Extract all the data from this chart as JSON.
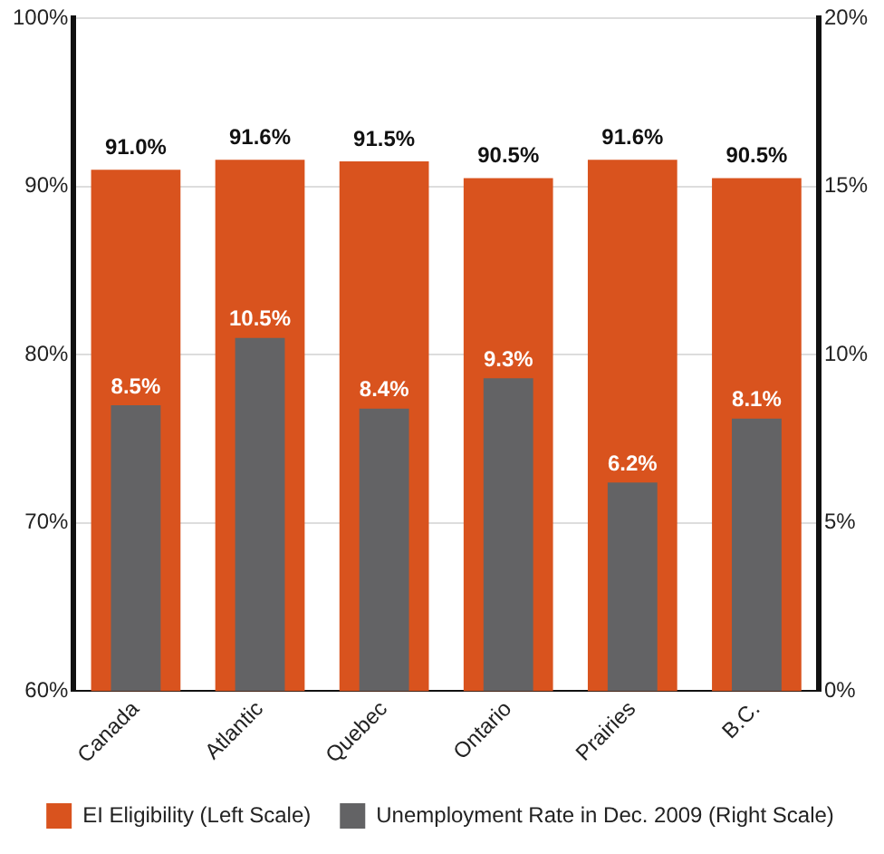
{
  "chart_data": {
    "type": "bar",
    "categories": [
      "Canada",
      "Atlantic",
      "Quebec",
      "Ontario",
      "Prairies",
      "B.C."
    ],
    "series": [
      {
        "name": "EI Eligibility (Left Scale)",
        "color": "#d9531e",
        "values": [
          91.0,
          91.6,
          91.5,
          90.5,
          91.6,
          90.5
        ],
        "value_labels": [
          "91.0%",
          "91.6%",
          "91.5%",
          "90.5%",
          "91.6%",
          "90.5%"
        ]
      },
      {
        "name": "Unemployment Rate in Dec. 2009 (Right Scale)",
        "color": "#636365",
        "axis": "y2",
        "values": [
          8.5,
          10.5,
          8.4,
          9.3,
          6.2,
          8.1
        ],
        "value_labels": [
          "8.5%",
          "10.5%",
          "8.4%",
          "9.3%",
          "6.2%",
          "8.1%"
        ]
      }
    ],
    "ylim": [
      60,
      100
    ],
    "yticks": [
      {
        "value": 60,
        "label": "60%"
      },
      {
        "value": 70,
        "label": "70%"
      },
      {
        "value": 80,
        "label": "80%"
      },
      {
        "value": 90,
        "label": "90%"
      },
      {
        "value": 100,
        "label": "100%"
      }
    ],
    "y2lim": [
      0,
      20
    ],
    "y2ticks": [
      {
        "value": 0,
        "label": "0%"
      },
      {
        "value": 5,
        "label": "5%"
      },
      {
        "value": 10,
        "label": "10%"
      },
      {
        "value": 15,
        "label": "15%"
      },
      {
        "value": 20,
        "label": "20%"
      }
    ],
    "grid": "y",
    "legend": "bottom"
  }
}
